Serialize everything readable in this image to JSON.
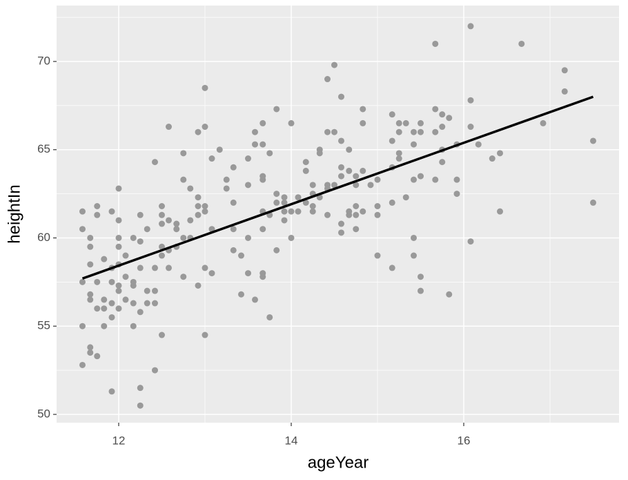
{
  "chart_data": {
    "type": "scatter",
    "x_label": "ageYear",
    "y_label": "heightIn",
    "xlim": [
      11.28,
      17.8
    ],
    "ylim": [
      49.53,
      73.17
    ],
    "xticks": [
      12,
      14,
      16
    ],
    "yticks": [
      50,
      55,
      60,
      65,
      70
    ],
    "grid": true,
    "panel_color": "#ebebeb",
    "series": [
      {
        "type": "scatter",
        "color": "#999999",
        "x": [
          11.58,
          11.58,
          11.58,
          11.58,
          11.58,
          11.67,
          11.67,
          11.67,
          11.67,
          11.67,
          11.67,
          11.67,
          11.75,
          11.75,
          11.75,
          11.75,
          11.75,
          11.83,
          11.83,
          11.83,
          11.83,
          11.92,
          11.92,
          11.92,
          11.92,
          11.92,
          11.92,
          12.0,
          12.0,
          12.0,
          12.0,
          12.0,
          12.0,
          12.0,
          12.0,
          12.08,
          12.08,
          12.08,
          12.17,
          12.17,
          12.17,
          12.17,
          12.17,
          12.25,
          12.25,
          12.25,
          12.25,
          12.25,
          12.25,
          12.33,
          12.33,
          12.33,
          12.42,
          12.42,
          12.42,
          12.42,
          12.42,
          12.5,
          12.5,
          12.5,
          12.5,
          12.5,
          12.5,
          12.58,
          12.58,
          12.58,
          12.58,
          12.67,
          12.67,
          12.67,
          12.75,
          12.75,
          12.75,
          12.75,
          12.83,
          12.83,
          12.83,
          12.92,
          12.92,
          12.92,
          12.92,
          12.92,
          13.0,
          13.0,
          13.0,
          13.0,
          13.0,
          13.0,
          13.08,
          13.08,
          13.08,
          13.17,
          13.25,
          13.25,
          13.33,
          13.33,
          13.33,
          13.33,
          13.42,
          13.42,
          13.5,
          13.5,
          13.5,
          13.5,
          13.58,
          13.58,
          13.58,
          13.67,
          13.67,
          13.67,
          13.67,
          13.67,
          13.67,
          13.67,
          13.67,
          13.75,
          13.75,
          13.75,
          13.83,
          13.83,
          13.83,
          13.83,
          13.92,
          13.92,
          13.92,
          13.92,
          14.0,
          14.0,
          14.0,
          14.08,
          14.08,
          14.17,
          14.17,
          14.17,
          14.25,
          14.25,
          14.25,
          14.25,
          14.33,
          14.33,
          14.33,
          14.42,
          14.42,
          14.42,
          14.42,
          14.42,
          14.5,
          14.5,
          14.5,
          14.58,
          14.58,
          14.58,
          14.58,
          14.58,
          14.58,
          14.67,
          14.67,
          14.67,
          14.67,
          14.75,
          14.75,
          14.75,
          14.75,
          14.75,
          14.83,
          14.83,
          14.83,
          14.83,
          14.92,
          15.0,
          15.0,
          15.0,
          15.0,
          15.17,
          15.17,
          15.17,
          15.17,
          15.17,
          15.25,
          15.25,
          15.25,
          15.25,
          15.33,
          15.33,
          15.42,
          15.42,
          15.42,
          15.42,
          15.42,
          15.5,
          15.5,
          15.5,
          15.5,
          15.5,
          15.67,
          15.67,
          15.67,
          15.67,
          15.75,
          15.75,
          15.75,
          15.75,
          15.83,
          15.83,
          15.92,
          15.92,
          15.92,
          16.08,
          16.08,
          16.08,
          16.08,
          16.17,
          16.33,
          16.42,
          16.42,
          16.67,
          16.92,
          17.17,
          17.17,
          17.5,
          17.5
        ],
        "values": [
          61.5,
          60.5,
          57.5,
          55.0,
          52.8,
          60.0,
          59.5,
          58.5,
          56.8,
          56.5,
          53.8,
          53.5,
          61.8,
          61.3,
          57.5,
          56.0,
          53.3,
          58.8,
          56.5,
          56.0,
          55.0,
          61.5,
          58.3,
          57.5,
          56.3,
          55.5,
          51.3,
          62.8,
          61.0,
          60.0,
          59.5,
          58.5,
          57.3,
          57.0,
          56.0,
          59.0,
          57.8,
          56.5,
          60.0,
          57.5,
          57.3,
          56.3,
          55.0,
          61.3,
          59.8,
          58.3,
          55.8,
          51.5,
          50.5,
          60.5,
          57.0,
          56.3,
          64.3,
          58.3,
          57.0,
          56.3,
          52.5,
          61.8,
          61.3,
          60.8,
          59.5,
          59.0,
          54.5,
          66.3,
          61.0,
          59.3,
          58.3,
          60.8,
          60.5,
          59.5,
          64.8,
          63.3,
          60.0,
          57.8,
          62.8,
          61.0,
          60.0,
          66.0,
          62.3,
          61.8,
          61.3,
          57.3,
          68.5,
          66.3,
          61.8,
          61.5,
          58.3,
          54.5,
          64.5,
          60.5,
          58.0,
          65.0,
          63.3,
          62.8,
          64.0,
          62.0,
          60.5,
          59.3,
          59.0,
          56.8,
          64.5,
          63.0,
          60.0,
          58.0,
          66.0,
          65.3,
          56.5,
          66.5,
          65.3,
          63.5,
          63.3,
          61.5,
          60.5,
          58.0,
          57.8,
          64.8,
          61.3,
          55.5,
          67.3,
          62.5,
          62.0,
          59.3,
          62.3,
          62.0,
          61.5,
          61.0,
          66.5,
          61.5,
          60.0,
          62.3,
          61.5,
          64.3,
          63.8,
          62.0,
          63.0,
          62.5,
          61.8,
          61.5,
          65.0,
          64.8,
          62.3,
          69.0,
          66.0,
          63.0,
          62.8,
          61.3,
          69.8,
          66.0,
          63.0,
          68.0,
          65.5,
          64.0,
          63.5,
          60.8,
          60.3,
          65.0,
          63.8,
          61.5,
          61.3,
          63.5,
          63.0,
          61.8,
          61.3,
          60.5,
          67.3,
          66.5,
          63.8,
          61.5,
          63.0,
          63.3,
          61.8,
          61.3,
          59.0,
          67.0,
          65.5,
          64.0,
          62.0,
          58.3,
          66.5,
          66.0,
          64.8,
          64.5,
          66.5,
          62.3,
          66.0,
          65.3,
          63.3,
          60.0,
          59.0,
          66.5,
          66.0,
          63.5,
          57.8,
          57.0,
          71.0,
          67.3,
          66.0,
          63.3,
          67.0,
          66.3,
          65.0,
          64.3,
          66.8,
          56.8,
          65.3,
          63.3,
          62.5,
          72.0,
          67.8,
          66.3,
          59.8,
          65.3,
          64.5,
          64.8,
          61.5,
          71.0,
          66.5,
          69.5,
          68.3,
          65.5,
          62.0
        ]
      },
      {
        "type": "line",
        "color": "#000000",
        "x": [
          11.58,
          17.5
        ],
        "values": [
          57.7,
          68.0
        ]
      }
    ]
  }
}
